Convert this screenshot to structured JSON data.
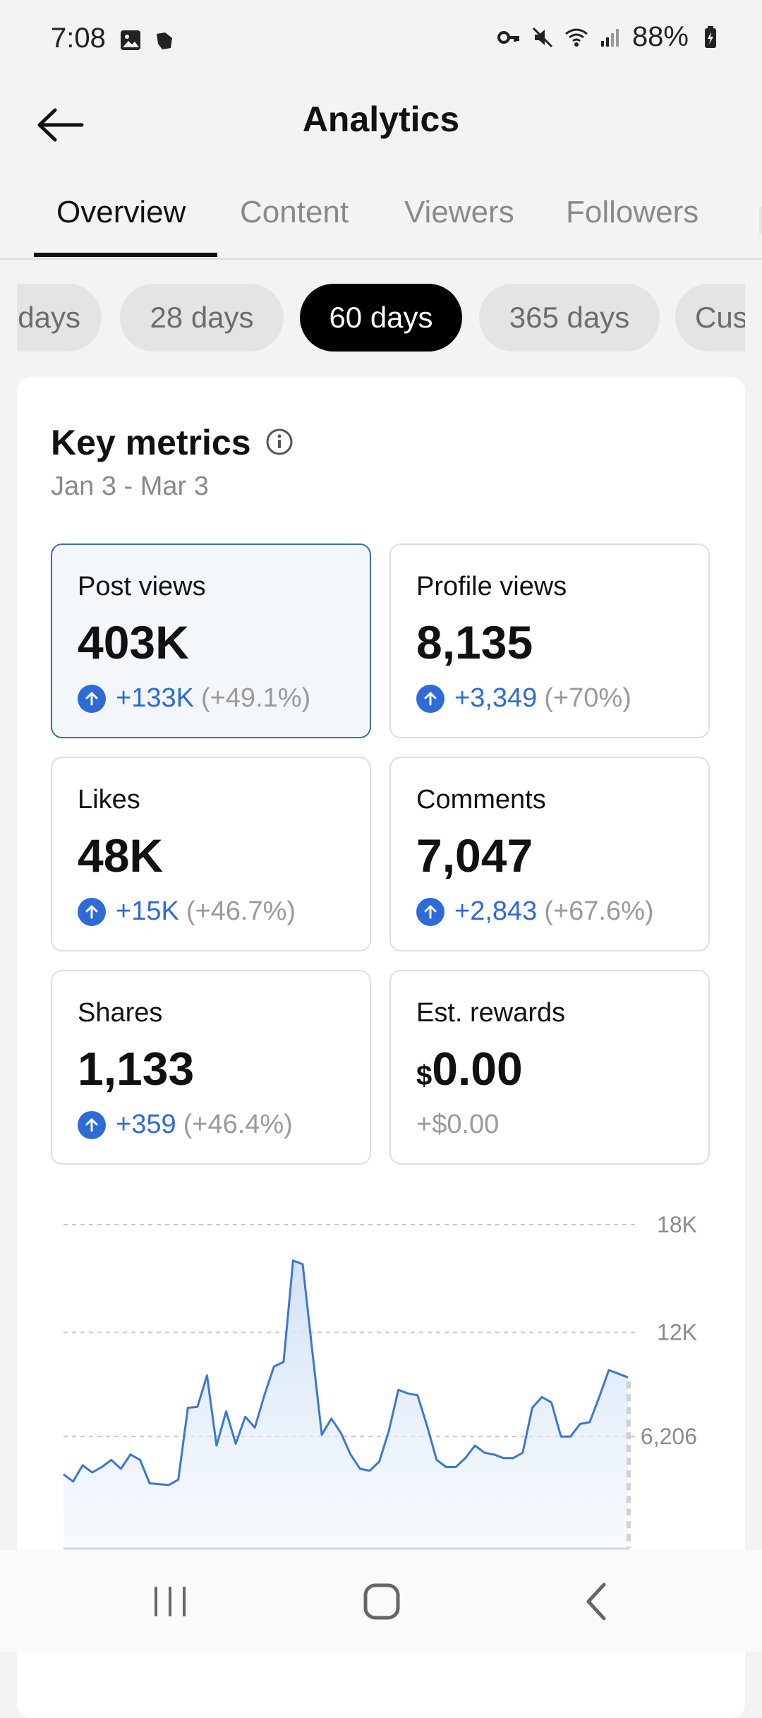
{
  "status_bar": {
    "time": "7:08",
    "battery": "88%",
    "icons": [
      "image-icon",
      "app-icon",
      "key-icon",
      "mute-icon",
      "wifi-icon",
      "signal-icon",
      "battery-icon"
    ]
  },
  "header": {
    "title": "Analytics",
    "back_icon": "back-arrow-icon"
  },
  "tabs": [
    {
      "label": "Overview",
      "active": true
    },
    {
      "label": "Content"
    },
    {
      "label": "Viewers"
    },
    {
      "label": "Followers"
    }
  ],
  "periods": [
    {
      "label": "days"
    },
    {
      "label": "28 days"
    },
    {
      "label": "60 days",
      "selected": true
    },
    {
      "label": "365 days"
    },
    {
      "label": "Cus"
    }
  ],
  "key_metrics": {
    "title": "Key metrics",
    "date_range": "Jan 3 - Mar 3",
    "items": [
      {
        "label": "Post views",
        "value": "403K",
        "delta": "+133K",
        "pct": "(+49.1%)",
        "selected": true
      },
      {
        "label": "Profile views",
        "value": "8,135",
        "delta": "+3,349",
        "pct": "(+70%)"
      },
      {
        "label": "Likes",
        "value": "48K",
        "delta": "+15K",
        "pct": "(+46.7%)"
      },
      {
        "label": "Comments",
        "value": "7,047",
        "delta": "+2,843",
        "pct": "(+67.6%)"
      },
      {
        "label": "Shares",
        "value": "1,133",
        "delta": "+359",
        "pct": "(+46.4%)"
      },
      {
        "label": "Est. rewards",
        "currency": "$",
        "value": "0.00",
        "delta_plain": "+$0.00"
      }
    ]
  },
  "colors": {
    "accent": "#2f6bd6",
    "selected_border": "#3f6fa9",
    "line": "#3a78d4"
  },
  "chart_data": {
    "type": "area",
    "y_ticks": [
      {
        "value": 18000,
        "label": "18K"
      },
      {
        "value": 12000,
        "label": "12K"
      },
      {
        "value": 6206,
        "label": "6,206"
      }
    ],
    "ylim": [
      0,
      18000
    ],
    "grid": true,
    "series": [
      {
        "values": [
          4100,
          3700,
          4600,
          4200,
          4500,
          4900,
          4400,
          5200,
          4900,
          3600,
          3550,
          3500,
          3800,
          7800,
          7850,
          9600,
          5700,
          7600,
          5800,
          7300,
          6700,
          8500,
          10100,
          10350,
          16000,
          15800,
          11000,
          6300,
          7200,
          6400,
          5200,
          4400,
          4300,
          4800,
          6500,
          8800,
          8600,
          8500,
          6800,
          4900,
          4500,
          4500,
          5000,
          5700,
          5300,
          5200,
          5000,
          5000,
          5300,
          7800,
          8400,
          8100,
          6200,
          6200,
          6900,
          7000,
          8400,
          9900,
          9700,
          9500
        ]
      }
    ]
  }
}
